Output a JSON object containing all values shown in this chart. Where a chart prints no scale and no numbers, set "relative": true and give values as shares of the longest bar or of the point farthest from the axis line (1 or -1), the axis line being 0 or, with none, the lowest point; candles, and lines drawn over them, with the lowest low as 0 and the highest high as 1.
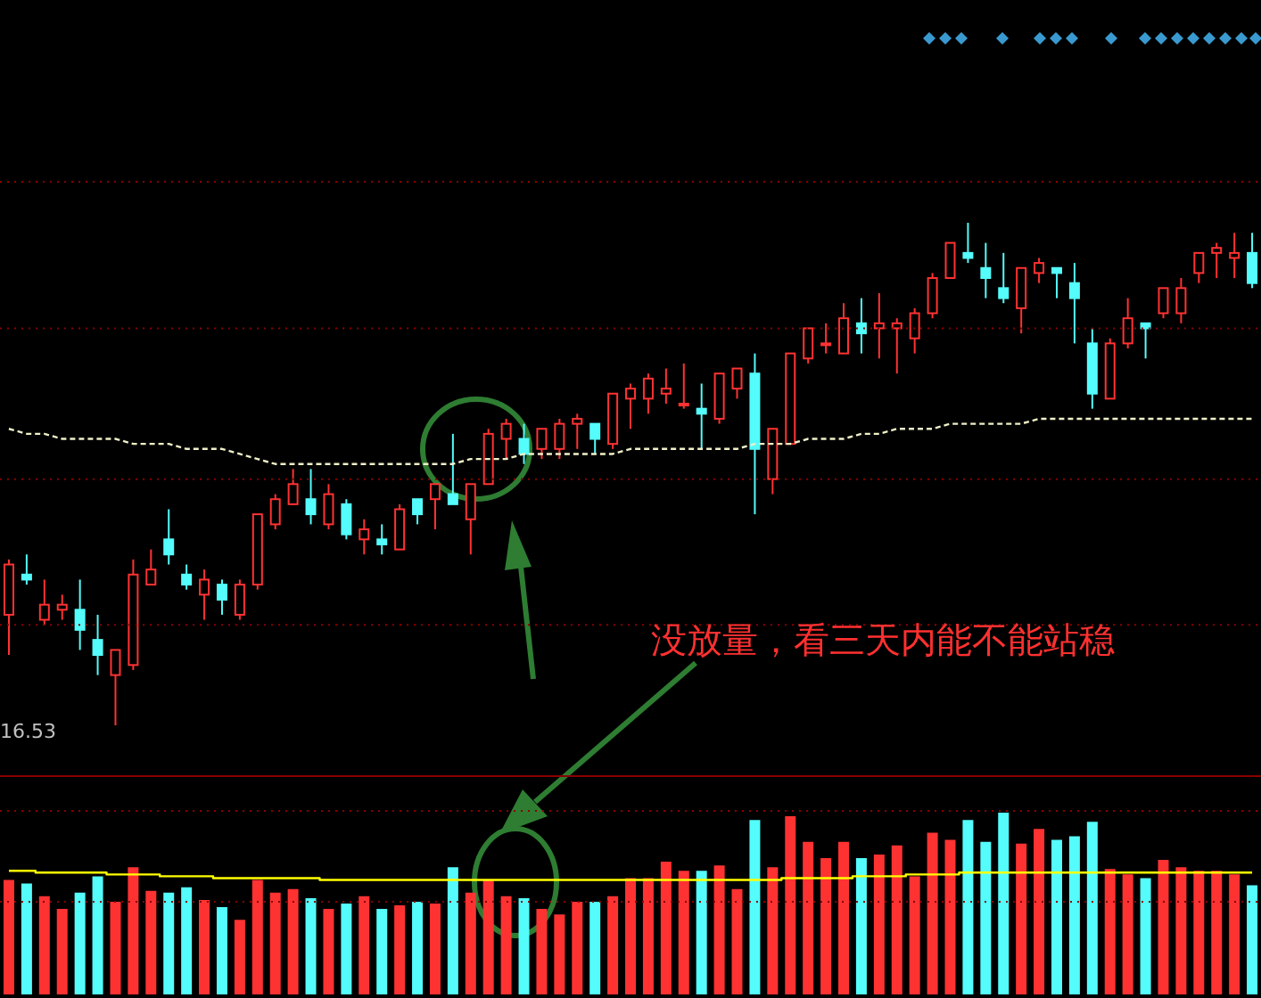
{
  "chart_data": [
    {
      "type": "candlestick",
      "relative": true,
      "ref_lines": [
        {
          "axis": "y",
          "value": 0.79,
          "color": "#8a0000",
          "line_style": "dotted"
        },
        {
          "axis": "y",
          "value": 0.49,
          "color": "#8a0000",
          "line_style": "dotted"
        },
        {
          "axis": "y",
          "value": 0.2,
          "color": "#8a0000",
          "line_style": "dotted"
        }
      ],
      "categories": [
        null,
        null,
        null,
        null,
        null,
        null,
        null,
        null,
        null,
        null,
        null,
        null,
        null,
        null,
        null,
        null,
        null,
        null,
        null,
        null,
        null,
        null,
        null,
        null,
        null,
        null,
        null,
        null,
        null,
        null,
        null,
        null,
        null,
        null,
        null,
        null,
        null,
        null,
        null,
        null,
        null,
        null,
        null,
        null,
        null,
        null,
        null,
        null,
        null,
        null,
        null,
        null,
        null,
        null,
        null,
        null,
        null,
        null,
        null,
        null,
        null,
        null,
        null,
        null,
        null,
        null,
        null,
        null,
        null,
        null,
        null
      ],
      "ohlc": [
        [
          0.22,
          0.33,
          0.14,
          0.32
        ],
        [
          0.3,
          0.34,
          0.28,
          0.29
        ],
        [
          0.21,
          0.29,
          0.2,
          0.24
        ],
        [
          0.23,
          0.26,
          0.21,
          0.24
        ],
        [
          0.23,
          0.29,
          0.15,
          0.19
        ],
        [
          0.17,
          0.22,
          0.1,
          0.14
        ],
        [
          0.1,
          0.15,
          0,
          0.15
        ],
        [
          0.12,
          0.33,
          0.11,
          0.3
        ],
        [
          0.28,
          0.35,
          0.28,
          0.31
        ],
        [
          0.37,
          0.43,
          0.32,
          0.34
        ],
        [
          0.3,
          0.32,
          0.27,
          0.28
        ],
        [
          0.26,
          0.31,
          0.21,
          0.29
        ],
        [
          0.28,
          0.29,
          0.22,
          0.25
        ],
        [
          0.22,
          0.29,
          0.21,
          0.28
        ],
        [
          0.28,
          0.42,
          0.27,
          0.42
        ],
        [
          0.4,
          0.46,
          0.39,
          0.45
        ],
        [
          0.44,
          0.51,
          0.44,
          0.48
        ],
        [
          0.45,
          0.51,
          0.4,
          0.42
        ],
        [
          0.4,
          0.48,
          0.39,
          0.46
        ],
        [
          0.44,
          0.45,
          0.37,
          0.38
        ],
        [
          0.37,
          0.41,
          0.34,
          0.39
        ],
        [
          0.37,
          0.4,
          0.34,
          0.36
        ],
        [
          0.35,
          0.44,
          0.35,
          0.43
        ],
        [
          0.45,
          0.45,
          0.4,
          0.42
        ],
        [
          0.45,
          0.48,
          0.39,
          0.48
        ],
        [
          0.46,
          0.58,
          0.44,
          0.44
        ],
        [
          0.41,
          0.48,
          0.34,
          0.48
        ],
        [
          0.48,
          0.59,
          0.48,
          0.58
        ],
        [
          0.57,
          0.61,
          0.53,
          0.6
        ],
        [
          0.57,
          0.6,
          0.52,
          0.54
        ],
        [
          0.55,
          0.59,
          0.53,
          0.59
        ],
        [
          0.55,
          0.61,
          0.53,
          0.6
        ],
        [
          0.6,
          0.62,
          0.55,
          0.61
        ],
        [
          0.6,
          0.6,
          0.54,
          0.57
        ],
        [
          0.56,
          0.66,
          0.55,
          0.66
        ],
        [
          0.65,
          0.68,
          0.59,
          0.67
        ],
        [
          0.65,
          0.7,
          0.62,
          0.69
        ],
        [
          0.66,
          0.71,
          0.64,
          0.67
        ],
        [
          0.64,
          0.72,
          0.63,
          0.64
        ],
        [
          0.63,
          0.68,
          0.55,
          0.62
        ],
        [
          0.61,
          0.7,
          0.6,
          0.7
        ],
        [
          0.67,
          0.71,
          0.65,
          0.71
        ],
        [
          0.7,
          0.74,
          0.42,
          0.55
        ],
        [
          0.49,
          0.59,
          0.46,
          0.59
        ],
        [
          0.56,
          0.74,
          0.56,
          0.74
        ],
        [
          0.73,
          0.79,
          0.72,
          0.79
        ],
        [
          0.76,
          0.8,
          0.74,
          0.76
        ],
        [
          0.74,
          0.84,
          0.74,
          0.81
        ],
        [
          0.8,
          0.85,
          0.74,
          0.78
        ],
        [
          0.79,
          0.86,
          0.73,
          0.8
        ],
        [
          0.79,
          0.81,
          0.7,
          0.8
        ],
        [
          0.77,
          0.83,
          0.74,
          0.82
        ],
        [
          0.82,
          0.9,
          0.81,
          0.89
        ],
        [
          0.89,
          0.96,
          0.89,
          0.96
        ],
        [
          0.94,
          1,
          0.92,
          0.93
        ],
        [
          0.91,
          0.96,
          0.85,
          0.89
        ],
        [
          0.87,
          0.94,
          0.84,
          0.85
        ],
        [
          0.83,
          0.91,
          0.78,
          0.91
        ],
        [
          0.9,
          0.93,
          0.88,
          0.92
        ],
        [
          0.91,
          0.91,
          0.85,
          0.9
        ],
        [
          0.88,
          0.92,
          0.76,
          0.85
        ],
        [
          0.76,
          0.79,
          0.63,
          0.66
        ],
        [
          0.65,
          0.77,
          0.65,
          0.76
        ],
        [
          0.76,
          0.85,
          0.75,
          0.81
        ],
        [
          0.8,
          0.8,
          0.73,
          0.79
        ],
        [
          0.82,
          0.87,
          0.81,
          0.87
        ],
        [
          0.82,
          0.89,
          0.8,
          0.87
        ],
        [
          0.9,
          0.94,
          0.88,
          0.94
        ],
        [
          0.94,
          0.96,
          0.89,
          0.95
        ],
        [
          0.93,
          0.98,
          0.89,
          0.94
        ],
        [
          0.94,
          0.98,
          0.87,
          0.88
        ]
      ],
      "colors": [
        "#ff3232",
        "#54fcfc",
        "#ff3232",
        "#ff3232",
        "#54fcfc",
        "#54fcfc",
        "#ff3232",
        "#ff3232",
        "#ff3232",
        "#54fcfc",
        "#54fcfc",
        "#ff3232",
        "#54fcfc",
        "#ff3232",
        "#ff3232",
        "#ff3232",
        "#ff3232",
        "#54fcfc",
        "#ff3232",
        "#54fcfc",
        "#ff3232",
        "#54fcfc",
        "#ff3232",
        "#54fcfc",
        "#ff3232",
        "#54fcfc",
        "#ff3232",
        "#ff3232",
        "#ff3232",
        "#54fcfc",
        "#ff3232",
        "#ff3232",
        "#ff3232",
        "#54fcfc",
        "#ff3232",
        "#ff3232",
        "#ff3232",
        "#ff3232",
        "#ff3232",
        "#54fcfc",
        "#ff3232",
        "#ff3232",
        "#54fcfc",
        "#ff3232",
        "#ff3232",
        "#ff3232",
        "#ff3232",
        "#ff3232",
        "#54fcfc",
        "#ff3232",
        "#ff3232",
        "#ff3232",
        "#ff3232",
        "#ff3232",
        "#54fcfc",
        "#54fcfc",
        "#54fcfc",
        "#ff3232",
        "#ff3232",
        "#54fcfc",
        "#54fcfc",
        "#54fcfc",
        "#ff3232",
        "#ff3232",
        "#54fcfc",
        "#ff3232",
        "#ff3232",
        "#ff3232",
        "#ff3232",
        "#ff3232",
        "#54fcfc"
      ],
      "series": [
        {
          "type": "line",
          "color": "#f0f0c8",
          "line_style": "dashed",
          "values": [
            0.59,
            0.58,
            0.58,
            0.57,
            0.57,
            0.57,
            0.57,
            0.56,
            0.56,
            0.56,
            0.55,
            0.55,
            0.55,
            0.54,
            0.53,
            0.52,
            0.52,
            0.52,
            0.52,
            0.52,
            0.52,
            0.52,
            0.52,
            0.52,
            0.52,
            0.52,
            0.53,
            0.53,
            0.53,
            0.54,
            0.54,
            0.54,
            0.54,
            0.54,
            0.54,
            0.55,
            0.55,
            0.55,
            0.55,
            0.55,
            0.55,
            0.55,
            0.56,
            0.56,
            0.56,
            0.57,
            0.57,
            0.57,
            0.58,
            0.58,
            0.59,
            0.59,
            0.59,
            0.6,
            0.6,
            0.6,
            0.6,
            0.6,
            0.61,
            0.61,
            0.61,
            0.61,
            0.61,
            0.61,
            0.61,
            0.61,
            0.61,
            0.61,
            0.61,
            0.61,
            0.61
          ]
        }
      ],
      "annotations": [
        "16.53",
        "没放量，看三天内能不能站稳"
      ]
    },
    {
      "type": "bar",
      "relative": true,
      "ref_lines": [
        {
          "axis": "y",
          "value": 0.51,
          "color": "#8a0000",
          "line_style": "dotted"
        }
      ],
      "categories": [
        null,
        null,
        null,
        null,
        null,
        null,
        null,
        null,
        null,
        null,
        null,
        null,
        null,
        null,
        null,
        null,
        null,
        null,
        null,
        null,
        null,
        null,
        null,
        null,
        null,
        null,
        null,
        null,
        null,
        null,
        null,
        null,
        null,
        null,
        null,
        null,
        null,
        null,
        null,
        null,
        null,
        null,
        null,
        null,
        null,
        null,
        null,
        null,
        null,
        null,
        null,
        null,
        null,
        null,
        null,
        null,
        null,
        null,
        null,
        null,
        null,
        null,
        null,
        null,
        null,
        null,
        null,
        null,
        null,
        null,
        null
      ],
      "series": [
        {
          "type": "bar",
          "values": [
            0.63,
            0.61,
            0.54,
            0.47,
            0.56,
            0.65,
            0.51,
            0.7,
            0.57,
            0.56,
            0.59,
            0.52,
            0.48,
            0.41,
            0.63,
            0.56,
            0.58,
            0.53,
            0.47,
            0.5,
            0.54,
            0.47,
            0.49,
            0.51,
            0.5,
            0.7,
            0.56,
            0.63,
            0.54,
            0.53,
            0.47,
            0.44,
            0.51,
            0.51,
            0.54,
            0.64,
            0.64,
            0.73,
            0.68,
            0.68,
            0.71,
            0.58,
            0.96,
            0.7,
            0.98,
            0.84,
            0.75,
            0.84,
            0.75,
            0.77,
            0.82,
            0.65,
            0.89,
            0.85,
            0.96,
            0.84,
            1,
            0.83,
            0.91,
            0.85,
            0.87,
            0.95,
            0.69,
            0.66,
            0.64,
            0.74,
            0.7,
            0.68,
            0.68,
            0.66,
            0.6
          ],
          "colors": [
            "#ff3232",
            "#54fcfc",
            "#ff3232",
            "#ff3232",
            "#54fcfc",
            "#54fcfc",
            "#ff3232",
            "#ff3232",
            "#ff3232",
            "#54fcfc",
            "#54fcfc",
            "#ff3232",
            "#54fcfc",
            "#ff3232",
            "#ff3232",
            "#ff3232",
            "#ff3232",
            "#54fcfc",
            "#ff3232",
            "#54fcfc",
            "#ff3232",
            "#54fcfc",
            "#ff3232",
            "#54fcfc",
            "#ff3232",
            "#54fcfc",
            "#ff3232",
            "#ff3232",
            "#ff3232",
            "#54fcfc",
            "#ff3232",
            "#ff3232",
            "#ff3232",
            "#54fcfc",
            "#ff3232",
            "#ff3232",
            "#ff3232",
            "#ff3232",
            "#ff3232",
            "#54fcfc",
            "#ff3232",
            "#ff3232",
            "#54fcfc",
            "#ff3232",
            "#ff3232",
            "#ff3232",
            "#ff3232",
            "#ff3232",
            "#54fcfc",
            "#ff3232",
            "#ff3232",
            "#ff3232",
            "#ff3232",
            "#ff3232",
            "#54fcfc",
            "#54fcfc",
            "#54fcfc",
            "#ff3232",
            "#ff3232",
            "#54fcfc",
            "#54fcfc",
            "#54fcfc",
            "#ff3232",
            "#ff3232",
            "#54fcfc",
            "#ff3232",
            "#ff3232",
            "#ff3232",
            "#ff3232",
            "#ff3232",
            "#54fcfc"
          ]
        },
        {
          "type": "step",
          "color": "#ffff00",
          "values": [
            0.68,
            0.68,
            0.67,
            0.67,
            0.67,
            0.67,
            0.66,
            0.66,
            0.66,
            0.65,
            0.65,
            0.65,
            0.64,
            0.64,
            0.64,
            0.64,
            0.64,
            0.64,
            0.63,
            0.63,
            0.63,
            0.63,
            0.63,
            0.63,
            0.63,
            0.63,
            0.63,
            0.63,
            0.63,
            0.63,
            0.63,
            0.63,
            0.63,
            0.63,
            0.63,
            0.63,
            0.63,
            0.63,
            0.63,
            0.63,
            0.63,
            0.63,
            0.63,
            0.63,
            0.64,
            0.64,
            0.64,
            0.64,
            0.65,
            0.65,
            0.65,
            0.66,
            0.66,
            0.66,
            0.67,
            0.67,
            0.67,
            0.67,
            0.67,
            0.67,
            0.67,
            0.67,
            0.67,
            0.67,
            0.67,
            0.67,
            0.67,
            0.67,
            0.67,
            0.67,
            0.67
          ]
        }
      ]
    }
  ]
}
